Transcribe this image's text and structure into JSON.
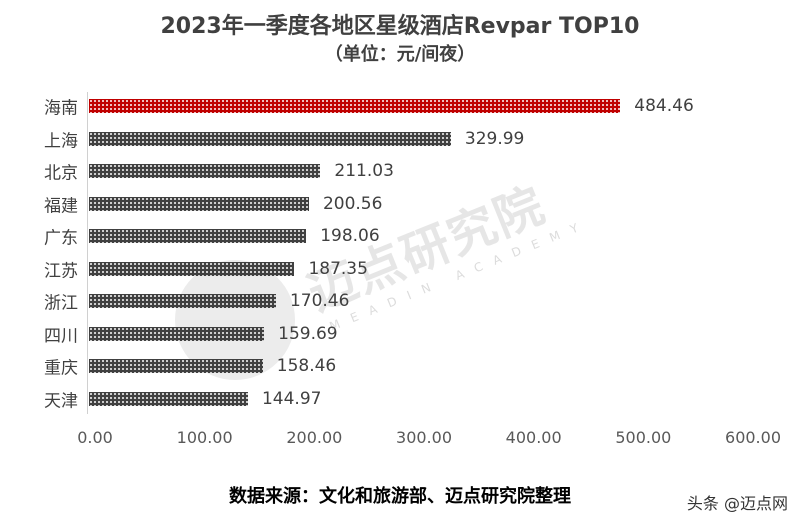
{
  "title": "2023年一季度各地区星级酒店Revpar TOP10",
  "subtitle": "（单位：元/间夜）",
  "source": "数据来源：文化和旅游部、迈点研究院整理",
  "watermark": {
    "text": "迈点研究院",
    "subtext": "MEADIN ACADEMY"
  },
  "credit": "头条 @迈点网",
  "colors": {
    "highlight": "#c00000",
    "default": "#404040"
  },
  "chart_data": {
    "type": "bar",
    "orientation": "horizontal",
    "title": "2023年一季度各地区星级酒店Revpar TOP10",
    "subtitle": "（单位：元/间夜）",
    "xlabel": "",
    "ylabel": "",
    "categories": [
      "海南",
      "上海",
      "北京",
      "福建",
      "广东",
      "江苏",
      "浙江",
      "四川",
      "重庆",
      "天津"
    ],
    "values": [
      484.46,
      329.99,
      211.03,
      200.56,
      198.06,
      187.35,
      170.46,
      159.69,
      158.46,
      144.97
    ],
    "value_labels": [
      "484.46",
      "329.99",
      "211.03",
      "200.56",
      "198.06",
      "187.35",
      "170.46",
      "159.69",
      "158.46",
      "144.97"
    ],
    "xlim": [
      0,
      600
    ],
    "xticks": [
      "0.00",
      "100.00",
      "200.00",
      "300.00",
      "400.00",
      "500.00",
      "600.00"
    ],
    "grid": false,
    "legend": null,
    "highlight_index": 0
  }
}
